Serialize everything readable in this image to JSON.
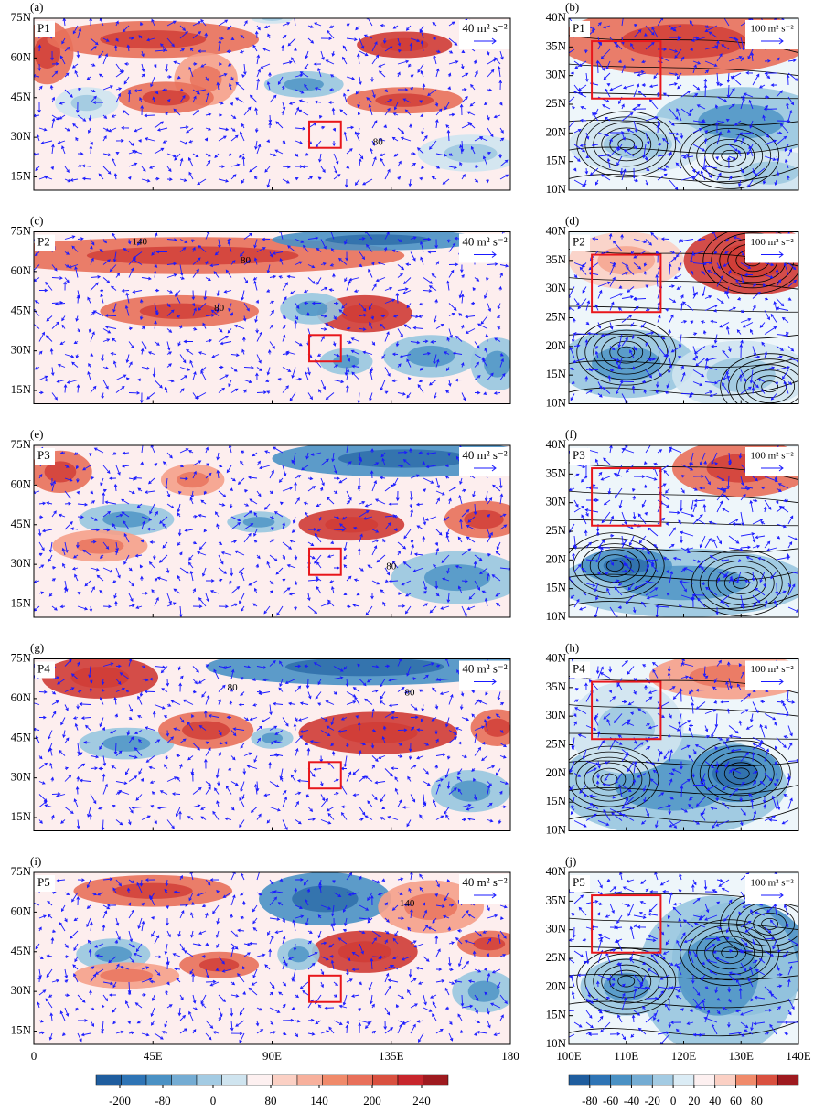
{
  "left_axes": {
    "xticks": [
      0,
      {
        "value": 45,
        "label": "45E"
      },
      {
        "value": 90,
        "label": "90E"
      },
      {
        "value": 135,
        "label": "135E"
      },
      180
    ],
    "yticks": [
      {
        "value": 15,
        "label": "15N"
      },
      {
        "value": 30,
        "label": "30N"
      },
      {
        "value": 45,
        "label": "45N"
      },
      {
        "value": 60,
        "label": "60N"
      },
      {
        "value": 75,
        "label": "75N"
      }
    ]
  },
  "right_axes": {
    "xticks": [
      {
        "value": 100,
        "label": "100E"
      },
      {
        "value": 110,
        "label": "110E"
      },
      {
        "value": 120,
        "label": "120E"
      },
      {
        "value": 130,
        "label": "130E"
      },
      {
        "value": 140,
        "label": "140E"
      }
    ],
    "yticks": [
      {
        "value": 10,
        "label": "10N"
      },
      {
        "value": 15,
        "label": "15N"
      },
      {
        "value": 20,
        "label": "20N"
      },
      {
        "value": 25,
        "label": "25N"
      },
      {
        "value": 30,
        "label": "30N"
      },
      {
        "value": 35,
        "label": "35N"
      },
      {
        "value": 40,
        "label": "40N"
      }
    ]
  },
  "panels": [
    {
      "label": "(a)",
      "period": "P1",
      "ref_vector": "40 m² s⁻²",
      "contour_labels": [
        "80"
      ]
    },
    {
      "label": "(b)",
      "period": "P1",
      "ref_vector": "100 m² s⁻²",
      "contour_labels": []
    },
    {
      "label": "(c)",
      "period": "P2",
      "ref_vector": "40 m² s⁻²",
      "contour_labels": [
        "140",
        "80",
        "80"
      ]
    },
    {
      "label": "(d)",
      "period": "P2",
      "ref_vector": "100 m² s⁻²",
      "contour_labels": []
    },
    {
      "label": "(e)",
      "period": "P3",
      "ref_vector": "40 m² s⁻²",
      "contour_labels": [
        "80"
      ]
    },
    {
      "label": "(f)",
      "period": "P3",
      "ref_vector": "100 m² s⁻²",
      "contour_labels": []
    },
    {
      "label": "(g)",
      "period": "P4",
      "ref_vector": "40 m² s⁻²",
      "contour_labels": [
        "80",
        "80"
      ]
    },
    {
      "label": "(h)",
      "period": "P4",
      "ref_vector": "100 m² s⁻²",
      "contour_labels": [
        "20"
      ]
    },
    {
      "label": "(i)",
      "period": "P5",
      "ref_vector": "40 m² s⁻²",
      "contour_labels": [
        "140"
      ]
    },
    {
      "label": "(j)",
      "period": "P5",
      "ref_vector": "100 m² s⁻²",
      "contour_labels": []
    }
  ],
  "colorbars": [
    {
      "ticks": [
        -200,
        -80,
        0,
        80,
        140,
        200,
        240
      ],
      "colors": [
        "#1f5d9e",
        "#2e74b5",
        "#4a91c4",
        "#74acd3",
        "#a3cbe3",
        "#cfe4ef",
        "#fdf0f0",
        "#fbd0c4",
        "#f7b09c",
        "#f08a6a",
        "#e8705a",
        "#d9503f",
        "#c7252c",
        "#9e1a1f"
      ]
    },
    {
      "ticks": [
        -80,
        -60,
        -40,
        -20,
        0,
        20,
        40,
        60,
        80
      ],
      "colors": [
        "#1f5d9e",
        "#2e74b5",
        "#4a91c4",
        "#74acd3",
        "#a3cbe3",
        "#dbecf5",
        "#fdf0f0",
        "#fbd0c4",
        "#f08a6a",
        "#d9503f",
        "#9e1a1f"
      ]
    }
  ]
}
